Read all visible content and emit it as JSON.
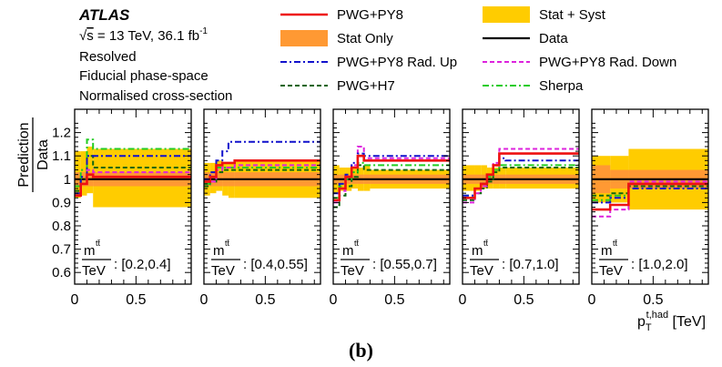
{
  "panel_label": "(b)",
  "header": {
    "experiment": "ATLAS",
    "energy_sqrt": "s",
    "energy_rest": " = 13 TeV, 36.1 fb",
    "energy_sup": "-1",
    "lines": [
      "Resolved",
      "Fiducial phase-space",
      "Normalised cross-section"
    ]
  },
  "legend": [
    {
      "label": "PWG+PY8",
      "kind": "line",
      "color": "#ee1111",
      "dash": "",
      "width": 2.6
    },
    {
      "label": "Stat + Syst",
      "kind": "band",
      "color": "#ffcc00"
    },
    {
      "label": "Stat Only",
      "kind": "band",
      "color": "#ff9933"
    },
    {
      "label": "Data",
      "kind": "line",
      "color": "#000000",
      "dash": "",
      "width": 2.2
    },
    {
      "label": "PWG+PY8 Rad. Up",
      "kind": "line",
      "color": "#1111cc",
      "dash": "7,3,2,3",
      "width": 2
    },
    {
      "label": "PWG+PY8 Rad. Down",
      "kind": "line",
      "color": "#dd22dd",
      "dash": "5,3",
      "width": 2
    },
    {
      "label": "PWG+H7",
      "kind": "line",
      "color": "#116611",
      "dash": "5,3",
      "width": 2
    },
    {
      "label": "Sherpa",
      "kind": "line",
      "color": "#22cc22",
      "dash": "7,3,2,3",
      "width": 2
    }
  ],
  "chart_data": {
    "type": "line",
    "ylabel": [
      "Prediction",
      "Data"
    ],
    "xlabel": {
      "base": "p",
      "sub": "T",
      "sup": "t,had",
      "unit": " [TeV]"
    },
    "ylim": [
      0.55,
      1.3
    ],
    "xlim": [
      0,
      0.95
    ],
    "yticks": [
      "1.2",
      "1.1",
      "1",
      "0.9",
      "0.8",
      "0.7",
      "0.6"
    ],
    "ytick_values": [
      1.2,
      1.1,
      1.0,
      0.9,
      0.8,
      0.7,
      0.6
    ],
    "xticks": [
      "0",
      "0.5"
    ],
    "xtick_values": [
      0,
      0.5
    ],
    "series_order": [
      "stat_syst",
      "stat_only",
      "data",
      "pwg_h7",
      "sherpa",
      "rad_down",
      "rad_up",
      "pwg_py8"
    ],
    "panels": [
      {
        "mass_label": ": [0.2,0.4]",
        "edges": [
          0,
          0.05,
          0.1,
          0.15,
          0.95
        ],
        "stat_syst": [
          [
            0.92,
            1.12
          ],
          [
            0.93,
            1.12
          ],
          [
            0.94,
            1.14
          ],
          [
            0.88,
            1.13
          ]
        ],
        "stat_only": [
          [
            0.97,
            1.03
          ],
          [
            0.97,
            1.03
          ],
          [
            0.97,
            1.03
          ],
          [
            0.97,
            1.03
          ]
        ],
        "data": [
          1,
          1,
          1,
          1
        ],
        "pwg_py8": [
          0.93,
          0.98,
          1.02,
          1.01
        ],
        "rad_up": [
          0.94,
          1.01,
          1.1,
          1.1
        ],
        "rad_down": [
          0.93,
          0.98,
          1.04,
          1.03
        ],
        "pwg_h7": [
          0.95,
          1.0,
          1.1,
          1.05
        ],
        "sherpa": [
          0.97,
          1.04,
          1.17,
          1.13
        ]
      },
      {
        "mass_label": ": [0.4,0.55]",
        "edges": [
          0,
          0.05,
          0.1,
          0.15,
          0.2,
          0.25,
          0.95
        ],
        "stat_syst": [
          [
            0.93,
            1.07
          ],
          [
            0.94,
            1.07
          ],
          [
            0.95,
            1.08
          ],
          [
            0.93,
            1.07
          ],
          [
            0.92,
            1.07
          ],
          [
            0.92,
            1.08
          ]
        ],
        "stat_only": [
          [
            0.97,
            1.03
          ],
          [
            0.97,
            1.03
          ],
          [
            0.97,
            1.03
          ],
          [
            0.97,
            1.03
          ],
          [
            0.97,
            1.03
          ],
          [
            0.97,
            1.03
          ]
        ],
        "data": [
          1,
          1,
          1,
          1,
          1,
          1
        ],
        "pwg_py8": [
          0.99,
          1.01,
          1.06,
          1.07,
          1.07,
          1.08
        ],
        "rad_up": [
          1.0,
          1.03,
          1.08,
          1.12,
          1.16,
          1.16
        ],
        "rad_down": [
          0.99,
          0.99,
          1.04,
          1.05,
          1.05,
          1.06
        ],
        "pwg_h7": [
          0.97,
          0.99,
          1.03,
          1.04,
          1.04,
          1.04
        ],
        "sherpa": [
          0.98,
          1.01,
          1.05,
          1.05,
          1.05,
          1.05
        ]
      },
      {
        "mass_label": ": [0.55,0.7]",
        "edges": [
          0,
          0.05,
          0.1,
          0.15,
          0.2,
          0.25,
          0.3,
          0.95
        ],
        "stat_syst": [
          [
            0.94,
            1.06
          ],
          [
            0.95,
            1.05
          ],
          [
            0.95,
            1.05
          ],
          [
            0.96,
            1.05
          ],
          [
            0.95,
            1.05
          ],
          [
            0.95,
            1.06
          ],
          [
            0.96,
            1.04
          ]
        ],
        "stat_only": [
          [
            0.98,
            1.02
          ],
          [
            0.98,
            1.02
          ],
          [
            0.98,
            1.02
          ],
          [
            0.98,
            1.02
          ],
          [
            0.98,
            1.02
          ],
          [
            0.98,
            1.02
          ],
          [
            0.98,
            1.02
          ]
        ],
        "data": [
          1,
          1,
          1,
          1,
          1,
          1,
          1
        ],
        "pwg_py8": [
          0.91,
          0.96,
          1.01,
          1.05,
          1.1,
          1.08,
          1.08
        ],
        "rad_up": [
          0.94,
          0.98,
          1.02,
          1.07,
          1.11,
          1.1,
          1.1
        ],
        "rad_down": [
          0.9,
          0.95,
          1.01,
          1.06,
          1.14,
          1.09,
          1.09
        ],
        "pwg_h7": [
          0.88,
          0.93,
          0.97,
          1.01,
          1.06,
          1.04,
          1.04
        ],
        "sherpa": [
          0.92,
          0.97,
          1.0,
          1.03,
          1.07,
          1.06,
          1.06
        ]
      },
      {
        "mass_label": ": [0.7,1.0]",
        "edges": [
          0,
          0.1,
          0.15,
          0.2,
          0.25,
          0.3,
          0.35,
          0.95
        ],
        "stat_syst": [
          [
            0.95,
            1.06
          ],
          [
            0.95,
            1.06
          ],
          [
            0.96,
            1.06
          ],
          [
            0.96,
            1.05
          ],
          [
            0.96,
            1.05
          ],
          [
            0.96,
            1.05
          ],
          [
            0.96,
            1.05
          ]
        ],
        "stat_only": [
          [
            0.98,
            1.02
          ],
          [
            0.98,
            1.02
          ],
          [
            0.98,
            1.02
          ],
          [
            0.98,
            1.02
          ],
          [
            0.98,
            1.02
          ],
          [
            0.98,
            1.02
          ],
          [
            0.98,
            1.02
          ]
        ],
        "data": [
          1,
          1,
          1,
          1,
          1,
          1,
          1
        ],
        "pwg_py8": [
          0.92,
          0.96,
          0.98,
          1.02,
          1.06,
          1.11,
          1.11
        ],
        "rad_up": [
          0.93,
          0.96,
          0.98,
          1.02,
          1.06,
          1.09,
          1.08
        ],
        "rad_down": [
          0.9,
          0.94,
          0.97,
          1.02,
          1.07,
          1.13,
          1.13
        ],
        "pwg_h7": [
          0.91,
          0.94,
          0.96,
          0.99,
          1.03,
          1.05,
          1.05
        ],
        "sherpa": [
          0.93,
          0.96,
          0.98,
          1.01,
          1.04,
          1.06,
          1.06
        ]
      },
      {
        "mass_label": ": [1.0,2.0]",
        "edges": [
          0,
          0.15,
          0.3,
          0.95
        ],
        "stat_syst": [
          [
            0.9,
            1.1
          ],
          [
            0.9,
            1.1
          ],
          [
            0.87,
            1.13
          ]
        ],
        "stat_only": [
          [
            0.94,
            1.06
          ],
          [
            0.96,
            1.04
          ],
          [
            0.96,
            1.04
          ]
        ],
        "data": [
          1,
          1,
          1
        ],
        "pwg_py8": [
          0.87,
          0.89,
          0.98
        ],
        "rad_up": [
          0.9,
          0.92,
          0.96
        ],
        "rad_down": [
          0.84,
          0.87,
          0.99
        ],
        "pwg_h7": [
          0.93,
          0.94,
          0.97
        ],
        "sherpa": [
          0.91,
          0.93,
          0.98
        ]
      }
    ]
  }
}
